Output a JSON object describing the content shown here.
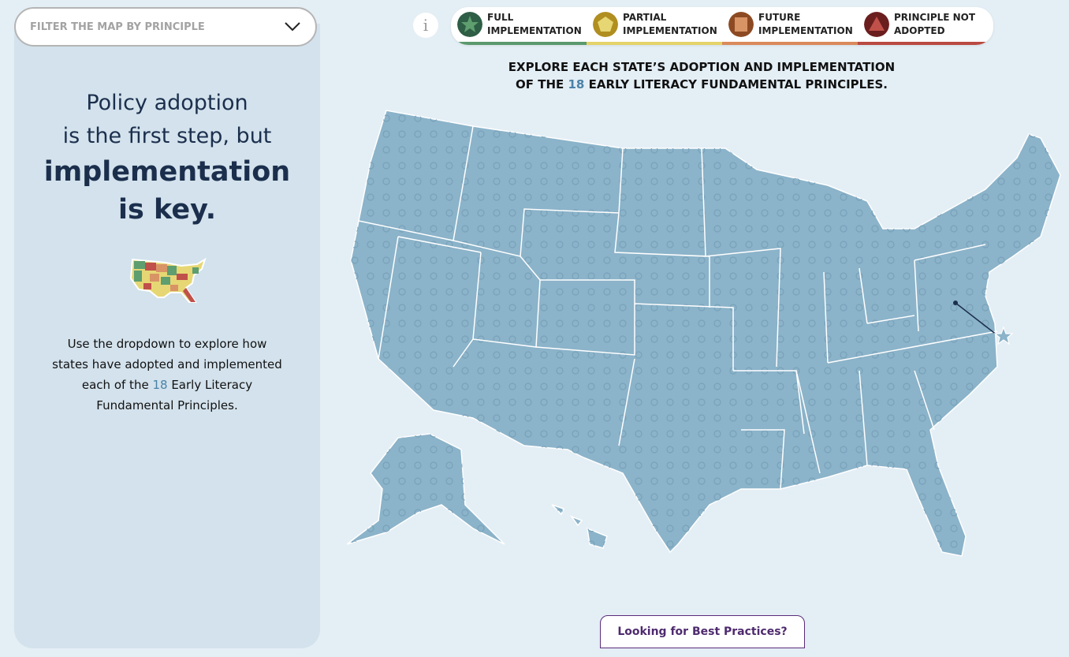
{
  "filter": {
    "placeholder": "FILTER THE MAP BY PRINCIPLE",
    "icon": "chevron-down-icon"
  },
  "sidebar": {
    "line1": "Policy adoption",
    "line2": "is the first step, but",
    "line3": "implementation",
    "line4": "is key.",
    "desc_pre": "Use the dropdown to explore how states have adopted and implemented each of the ",
    "desc_num": "18",
    "desc_post": " Early Literacy Fundamental Principles."
  },
  "info_label": "i",
  "legend": [
    {
      "label": "FULL IMPLEMENTATION",
      "icon": "star-icon",
      "color": "#5a9a6c",
      "dark": "#2e5e45",
      "fill": "#5e9e6f"
    },
    {
      "label": "PARTIAL IMPLEMENTATION",
      "icon": "pentagon-icon",
      "color": "#e5d36a",
      "dark": "#b08e1f",
      "fill": "#e6d774"
    },
    {
      "label": "FUTURE IMPLEMENTATION",
      "icon": "square-icon",
      "color": "#d98a5b",
      "dark": "#8d4a22",
      "fill": "#d99466"
    },
    {
      "label": "PRINCIPLE NOT ADOPTED",
      "icon": "triangle-icon",
      "color": "#b94a42",
      "dark": "#6b1e1e",
      "fill": "#c0504a"
    }
  ],
  "map_title": {
    "pre": "EXPLORE EACH STATE’S ADOPTION AND IMPLEMENTATION",
    "pre2": "OF THE ",
    "num": "18",
    "post": " EARLY LITERACY FUNDAMENTAL PRINCIPLES."
  },
  "map_color": "#8bb3c9",
  "best_practices": "Looking for Best Practices?"
}
